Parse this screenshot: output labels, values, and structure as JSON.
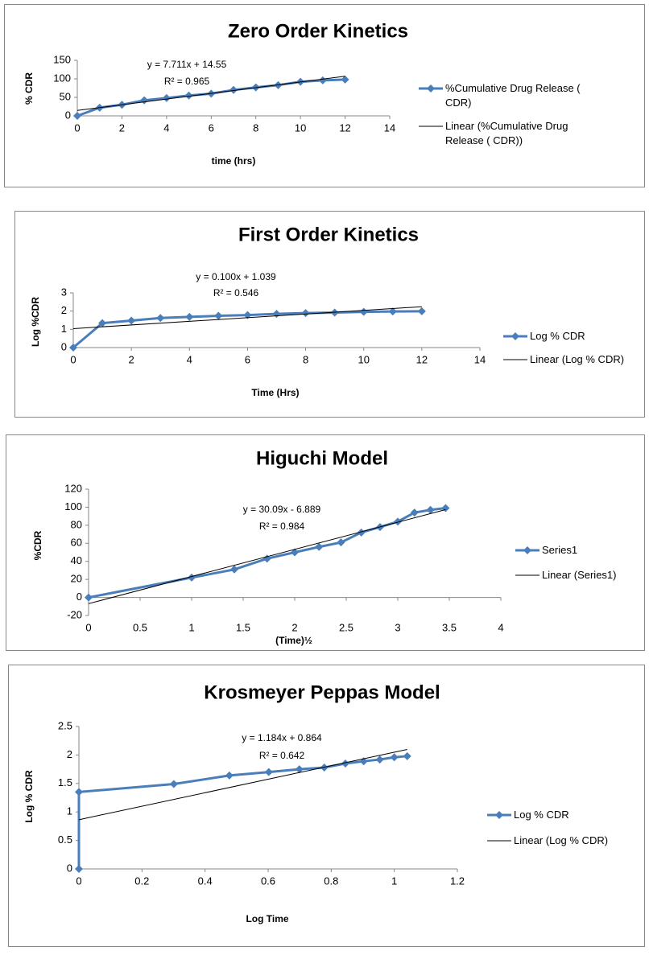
{
  "chart_data": [
    {
      "type": "line",
      "title": "Zero Order Kinetics",
      "xlabel": "time (hrs)",
      "ylabel": "% CDR",
      "annotations": [
        "y = 7.711x + 14.55",
        "R² = 0.965"
      ],
      "x": [
        0,
        1,
        2,
        3,
        4,
        5,
        6,
        7,
        8,
        9,
        10,
        11,
        12
      ],
      "xlim": [
        0,
        14
      ],
      "xticks": [
        0,
        2,
        4,
        6,
        8,
        10,
        12,
        14
      ],
      "ylim": [
        0,
        150
      ],
      "yticks": [
        0,
        50,
        100,
        150
      ],
      "series": [
        {
          "name": "%Cumulative Drug Release ( CDR)",
          "color": "#4a7ebb",
          "marker": "diamond",
          "values": [
            0,
            22,
            30,
            42,
            48,
            55,
            60,
            70,
            77,
            83,
            92,
            96,
            98
          ]
        },
        {
          "name": "Linear (%Cumulative Drug Release ( CDR))",
          "color": "#000000",
          "x": [
            0,
            12
          ],
          "values": [
            14.55,
            107.08
          ]
        }
      ]
    },
    {
      "type": "line",
      "title": "First Order Kinetics",
      "xlabel": "Time (Hrs)",
      "ylabel": "Log %CDR",
      "annotations": [
        "y = 0.100x + 1.039",
        "R² = 0.546"
      ],
      "x": [
        0,
        1,
        2,
        3,
        4,
        5,
        6,
        7,
        8,
        9,
        10,
        11,
        12
      ],
      "xlim": [
        0,
        14
      ],
      "xticks": [
        0,
        2,
        4,
        6,
        8,
        10,
        12,
        14
      ],
      "ylim": [
        0,
        3
      ],
      "yticks": [
        0,
        1,
        2,
        3
      ],
      "series": [
        {
          "name": "Log % CDR",
          "color": "#4a7ebb",
          "marker": "diamond",
          "values": [
            0,
            1.34,
            1.48,
            1.62,
            1.68,
            1.74,
            1.78,
            1.85,
            1.89,
            1.92,
            1.96,
            1.98,
            1.99
          ]
        },
        {
          "name": "Linear (Log % CDR)",
          "color": "#000000",
          "x": [
            0,
            12
          ],
          "values": [
            1.039,
            2.239
          ]
        }
      ]
    },
    {
      "type": "line",
      "title": "Higuchi Model",
      "xlabel": "(Time)½",
      "ylabel": "%CDR",
      "annotations": [
        "y = 30.09x - 6.889",
        "R² = 0.984"
      ],
      "x": [
        0,
        1,
        1.414,
        1.732,
        2,
        2.236,
        2.449,
        2.646,
        2.828,
        3,
        3.162,
        3.317,
        3.464
      ],
      "xlim": [
        0,
        4
      ],
      "xticks": [
        0,
        0.5,
        1,
        1.5,
        2,
        2.5,
        3,
        3.5,
        4
      ],
      "ylim": [
        -20,
        120
      ],
      "yticks": [
        -20,
        0,
        20,
        40,
        60,
        80,
        100,
        120
      ],
      "series": [
        {
          "name": "Series1",
          "color": "#4a7ebb",
          "marker": "diamond",
          "values": [
            0,
            22,
            31,
            43,
            50,
            56,
            61,
            72,
            78,
            84,
            94,
            97,
            99
          ]
        },
        {
          "name": "Linear (Series1)",
          "color": "#000000",
          "x": [
            0,
            3.464
          ],
          "values": [
            -6.889,
            97.34
          ]
        }
      ]
    },
    {
      "type": "line",
      "title": "Krosmeyer Peppas Model",
      "xlabel": "Log Time",
      "ylabel": "Log % CDR",
      "annotations": [
        "y = 1.184x + 0.864",
        "R² = 0.642"
      ],
      "x": [
        0,
        0,
        0.301,
        0.477,
        0.602,
        0.699,
        0.778,
        0.845,
        0.903,
        0.954,
        1,
        1.041
      ],
      "xlim": [
        0,
        1.2
      ],
      "xticks": [
        0,
        0.2,
        0.4,
        0.6,
        0.8,
        1,
        1.2
      ],
      "ylim": [
        0,
        2.5
      ],
      "yticks": [
        0,
        0.5,
        1,
        1.5,
        2,
        2.5
      ],
      "series": [
        {
          "name": "Log % CDR",
          "color": "#4a7ebb",
          "marker": "diamond",
          "values": [
            0,
            1.35,
            1.49,
            1.64,
            1.7,
            1.75,
            1.78,
            1.85,
            1.89,
            1.92,
            1.96,
            1.98
          ]
        },
        {
          "name": "Linear (Log % CDR)",
          "color": "#000000",
          "x": [
            0,
            1.041
          ],
          "values": [
            0.864,
            2.097
          ]
        }
      ]
    }
  ]
}
